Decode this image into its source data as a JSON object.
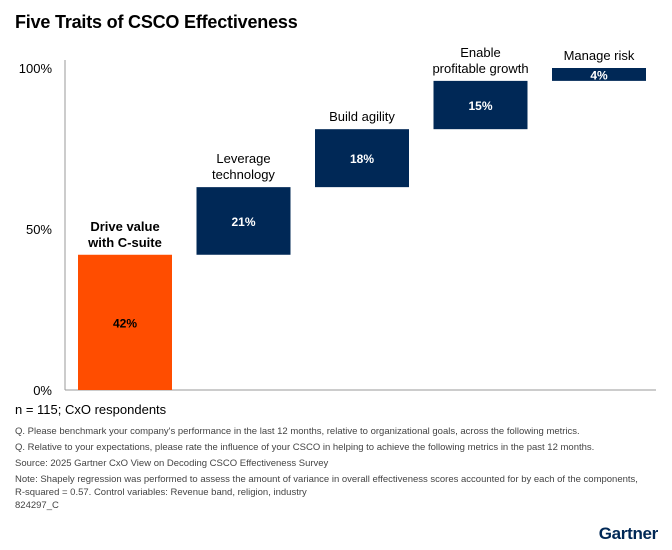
{
  "title": "Five Traits of CSCO Effectiveness",
  "sample": "n = 115; CxO respondents",
  "notes": [
    "Q. Please benchmark your company's performance in the last 12 months, relative to organizational goals, across the following metrics.",
    "Q. Relative to your expectations, please rate the influence of your CSCO in helping to achieve the following metrics in the past 12 months.",
    "Source: 2025 Gartner CxO View on Decoding CSCO Effectiveness Survey",
    "Note: Shapely regression was performed to assess the amount of variance in overall effectiveness scores accounted for by each of the components, R-squared = 0.57. Control variables: Revenue band, religion, industry"
  ],
  "code": "824297_C",
  "logo": "Gartner",
  "colors": {
    "highlight": "#ff4d00",
    "bar": "#002856"
  },
  "chart_data": {
    "type": "waterfall",
    "categories": [
      [
        "Drive value",
        "with C-suite"
      ],
      [
        "Leverage",
        "technology"
      ],
      [
        "Build agility"
      ],
      [
        "Enable",
        "profitable growth"
      ],
      [
        "Manage risk"
      ]
    ],
    "values": [
      42,
      21,
      18,
      15,
      4
    ],
    "value_labels": [
      "42%",
      "21%",
      "18%",
      "15%",
      "4%"
    ],
    "highlight_index": 0,
    "ylim": [
      0,
      100
    ],
    "yticks": [
      0,
      50,
      100
    ],
    "ytick_labels": [
      "0%",
      "50%",
      "100%"
    ]
  }
}
